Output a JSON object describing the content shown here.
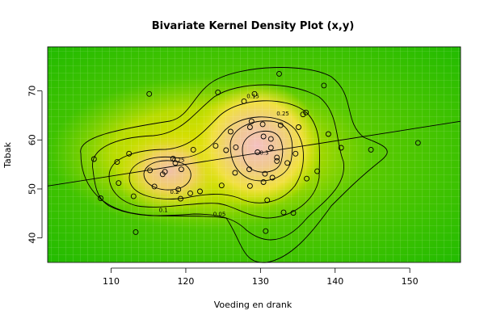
{
  "chart_data": {
    "type": "scatter",
    "title": "Bivariate Kernel Density Plot (x,y)",
    "xlabel": "Voeding en drank",
    "ylabel": "Tabak",
    "xlim": [
      101.5,
      156.8
    ],
    "ylim": [
      35.0,
      79.0
    ],
    "x_ticks": [
      110,
      120,
      130,
      140,
      150
    ],
    "y_ticks": [
      40,
      50,
      60,
      70
    ],
    "background": "kernel density heatmap (green low → yellow → orange → pink high)",
    "grid": true,
    "contour_labels": [
      {
        "text": "0.05",
        "x": 124.5,
        "y": 44.5
      },
      {
        "text": "0.1",
        "x": 117.0,
        "y": 45.3
      },
      {
        "text": "0.15",
        "x": 129.0,
        "y": 68.5
      },
      {
        "text": "0.2",
        "x": 118.5,
        "y": 49.0
      },
      {
        "text": "0.25",
        "x": 133.0,
        "y": 65.0
      },
      {
        "text": "0.25",
        "x": 119.0,
        "y": 55.5
      },
      {
        "text": "0.3",
        "x": 130.5,
        "y": 57.0
      }
    ],
    "points": [
      [
        107.7,
        56.1
      ],
      [
        108.6,
        48.1
      ],
      [
        110.8,
        55.5
      ],
      [
        111.0,
        51.2
      ],
      [
        112.4,
        57.2
      ],
      [
        113.0,
        48.5
      ],
      [
        113.3,
        41.2
      ],
      [
        115.1,
        69.4
      ],
      [
        115.2,
        53.8
      ],
      [
        115.8,
        50.5
      ],
      [
        116.9,
        53.0
      ],
      [
        117.2,
        53.5
      ],
      [
        118.3,
        56.2
      ],
      [
        118.6,
        55.3
      ],
      [
        119.0,
        49.9
      ],
      [
        119.3,
        48.0
      ],
      [
        119.4,
        54.0
      ],
      [
        120.6,
        49.1
      ],
      [
        121.0,
        58.0
      ],
      [
        121.9,
        49.5
      ],
      [
        124.0,
        58.8
      ],
      [
        124.3,
        69.7
      ],
      [
        124.8,
        50.7
      ],
      [
        125.4,
        57.9
      ],
      [
        126.0,
        61.7
      ],
      [
        126.6,
        53.3
      ],
      [
        126.7,
        58.5
      ],
      [
        127.8,
        67.9
      ],
      [
        128.5,
        54.0
      ],
      [
        128.6,
        50.6
      ],
      [
        128.6,
        62.6
      ],
      [
        128.8,
        63.8
      ],
      [
        129.2,
        69.4
      ],
      [
        129.6,
        57.5
      ],
      [
        130.3,
        63.2
      ],
      [
        130.4,
        51.4
      ],
      [
        130.4,
        60.7
      ],
      [
        130.6,
        53.1
      ],
      [
        130.7,
        41.4
      ],
      [
        130.9,
        47.7
      ],
      [
        131.4,
        58.4
      ],
      [
        131.4,
        60.2
      ],
      [
        131.6,
        52.3
      ],
      [
        132.2,
        56.4
      ],
      [
        132.2,
        55.7
      ],
      [
        132.5,
        73.5
      ],
      [
        132.7,
        63.0
      ],
      [
        133.1,
        45.2
      ],
      [
        133.6,
        55.3
      ],
      [
        134.4,
        45.1
      ],
      [
        134.7,
        57.2
      ],
      [
        135.1,
        62.6
      ],
      [
        135.7,
        65.2
      ],
      [
        136.1,
        65.6
      ],
      [
        136.2,
        52.1
      ],
      [
        137.6,
        53.6
      ],
      [
        138.5,
        71.1
      ],
      [
        139.1,
        61.2
      ],
      [
        140.8,
        58.4
      ],
      [
        144.8,
        58.0
      ],
      [
        151.1,
        59.4
      ]
    ],
    "regression_line": {
      "x": [
        101.5,
        156.8
      ],
      "y": [
        50.6,
        63.8
      ]
    }
  }
}
